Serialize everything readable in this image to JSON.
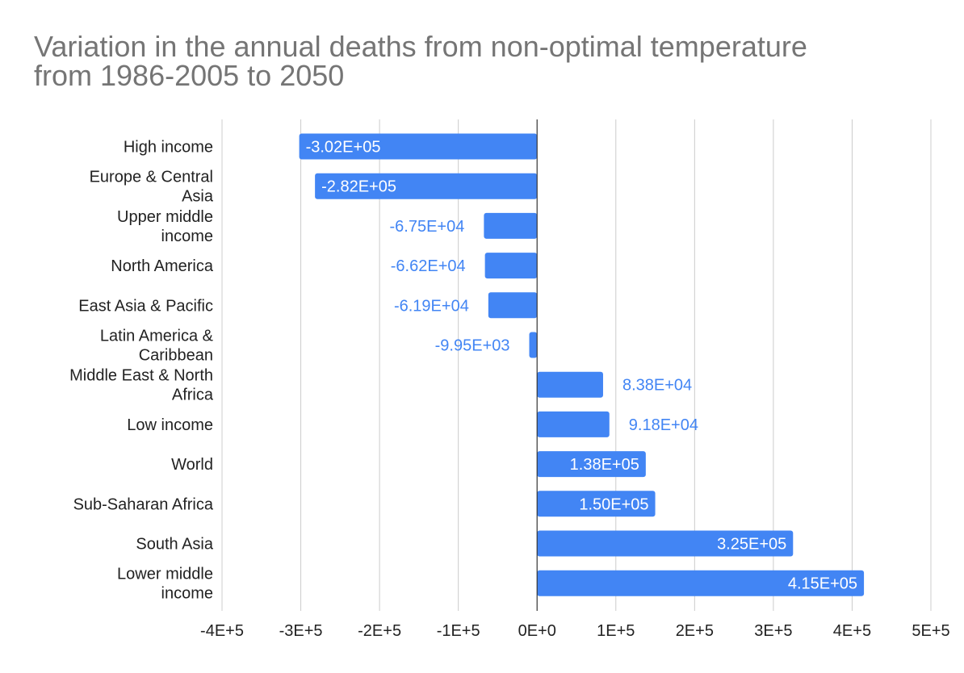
{
  "chart_data": {
    "type": "bar",
    "orientation": "horizontal",
    "title": "Variation in the annual deaths from non-optimal temperature\nfrom 1986-2005 to 2050",
    "categories": [
      "High income",
      "Europe & Central Asia",
      "Upper middle income",
      "North America",
      "East Asia & Pacific",
      "Latin America & Caribbean",
      "Middle East & North Africa",
      "Low income",
      "World",
      "Sub-Saharan Africa",
      "South Asia",
      "Lower middle income"
    ],
    "category_lines": [
      [
        "High income"
      ],
      [
        "Europe & Central",
        "Asia"
      ],
      [
        "Upper middle",
        "income"
      ],
      [
        "North America"
      ],
      [
        "East Asia & Pacific"
      ],
      [
        "Latin America &",
        "Caribbean"
      ],
      [
        "Middle East & North",
        "Africa"
      ],
      [
        "Low income"
      ],
      [
        "World"
      ],
      [
        "Sub-Saharan Africa"
      ],
      [
        "South Asia"
      ],
      [
        "Lower middle",
        "income"
      ]
    ],
    "values": [
      -302000,
      -282000,
      -67500,
      -66200,
      -61900,
      -9950,
      83800,
      91800,
      138000,
      150000,
      325000,
      415000
    ],
    "data_labels": [
      "-3.02E+05",
      "-2.82E+05",
      "-6.75E+04",
      "-6.62E+04",
      "-6.19E+04",
      "-9.95E+03",
      "8.38E+04",
      "9.18E+04",
      "1.38E+05",
      "1.50E+05",
      "3.25E+05",
      "4.15E+05"
    ],
    "x_ticks": [
      -400000,
      -300000,
      -200000,
      -100000,
      0,
      100000,
      200000,
      300000,
      400000,
      500000
    ],
    "x_tick_labels": [
      "-4E+5",
      "-3E+5",
      "-2E+5",
      "-1E+5",
      "0E+0",
      "1E+5",
      "2E+5",
      "3E+5",
      "4E+5",
      "5E+5"
    ],
    "xlim": [
      -400000,
      500000
    ],
    "xlabel": "",
    "ylabel": "",
    "grid": true,
    "legend": "none",
    "bar_color": "#4285f4",
    "title_color": "#757575"
  }
}
